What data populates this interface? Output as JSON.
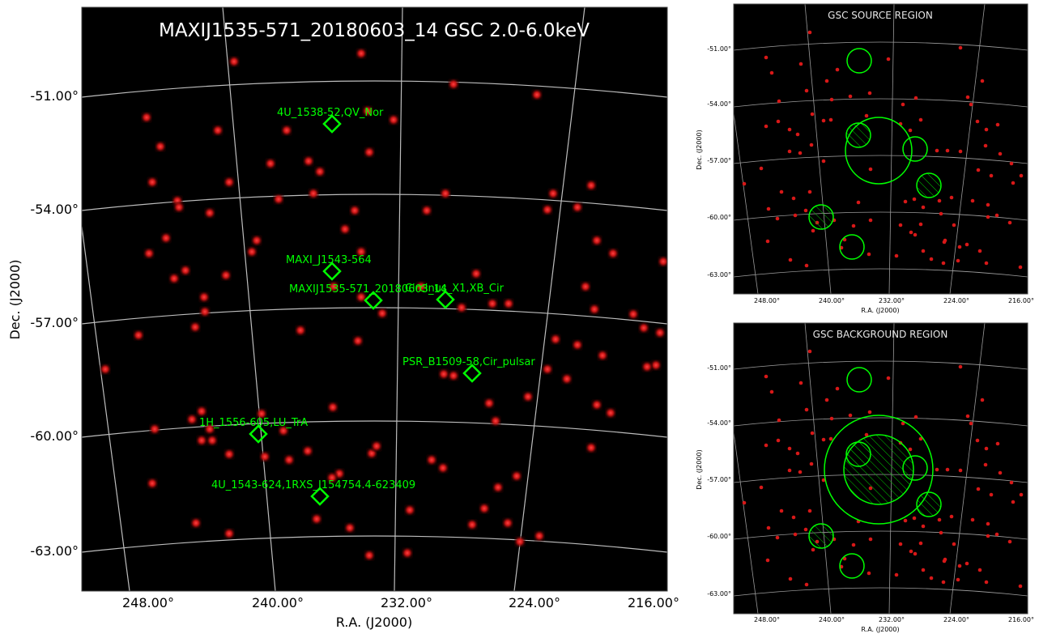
{
  "main_panel": {
    "title": "MAXIJ1535-571_20180603_14 GSC 2.0-6.0keV",
    "xlabel": "R.A. (J2000)",
    "ylabel": "Dec. (J2000)",
    "dec_ticks": [
      "-51.00°",
      "-54.00°",
      "-57.00°",
      "-60.00°",
      "-63.00°"
    ],
    "ra_ticks": [
      "248.00°",
      "240.00°",
      "232.00°",
      "224.00°",
      "216.00°"
    ]
  },
  "source_panel": {
    "title": "GSC SOURCE REGION",
    "xlabel": "R.A. (J2000)",
    "ylabel": "Dec. (J2000)",
    "dec_ticks": [
      "-51.00°",
      "-54.00°",
      "-57.00°",
      "-60.00°",
      "-63.00°"
    ],
    "ra_ticks": [
      "248.00°",
      "240.00°",
      "232.00°",
      "224.00°",
      "216.00°"
    ]
  },
  "background_panel": {
    "title": "GSC BACKGROUND REGION",
    "xlabel": "R.A. (J2000)",
    "ylabel": "Dec. (J2000)",
    "dec_ticks": [
      "-51.00°",
      "-54.00°",
      "-57.00°",
      "-60.00°",
      "-63.00°"
    ],
    "ra_ticks": [
      "248.00°",
      "240.00°",
      "232.00°",
      "224.00°",
      "216.00°"
    ]
  },
  "chart_data": {
    "type": "scatter",
    "title": "MAXIJ1535-571_20180603_14 GSC 2.0-6.0keV",
    "xlabel": "R.A. (J2000)",
    "ylabel": "Dec. (J2000)",
    "grid": true,
    "xlim": [
      252,
      216
    ],
    "ylim": [
      -64,
      -49
    ],
    "labeled_sources": [
      {
        "name": "4U_1538-52,QV_Nor",
        "ra": 235.6,
        "dec": -52.2
      },
      {
        "name": "MAXI_J1543-564",
        "ra": 235.8,
        "dec": -56.3
      },
      {
        "name": "MAXIJ1535-571_20180603_14",
        "ra": 233.8,
        "dec": -57.3
      },
      {
        "name": "Circinus_X1,XB_Cir",
        "ra": 230.2,
        "dec": -57.2
      },
      {
        "name": "PSR_B1509-58,Cir_pulsar",
        "ra": 228.5,
        "dec": -59.1
      },
      {
        "name": "1H_1556-605,LU_TrA",
        "ra": 239.0,
        "dec": -60.6
      },
      {
        "name": "4U_1543-624,1RXS_J154754.4-623409",
        "ra": 236.7,
        "dec": -62.3
      }
    ],
    "colors": {
      "background": "#000000",
      "counts": "#ff2a2a",
      "regions": "#00ff00",
      "grid": "#c8c8c8"
    }
  }
}
